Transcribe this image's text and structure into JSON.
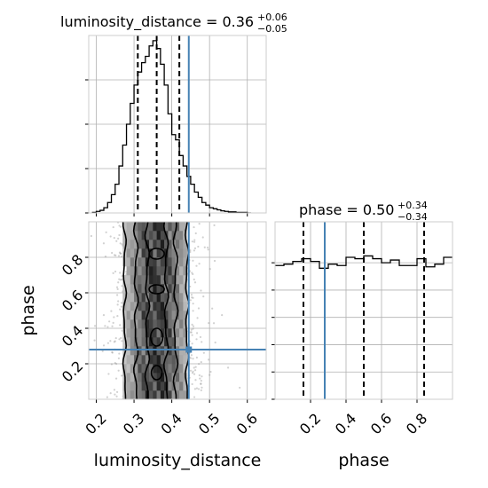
{
  "chart_data": [
    {
      "type": "histogram",
      "panel": "luminosity_distance marginal",
      "title": {
        "text": "luminosity_distance = 0.36",
        "sup": "+0.06",
        "sub": "−0.05"
      },
      "xlim": [
        0.18,
        0.65
      ],
      "bin_edges": [
        0.19,
        0.2,
        0.21,
        0.22,
        0.23,
        0.24,
        0.25,
        0.26,
        0.27,
        0.28,
        0.29,
        0.3,
        0.31,
        0.32,
        0.33,
        0.34,
        0.35,
        0.36,
        0.37,
        0.38,
        0.39,
        0.4,
        0.41,
        0.42,
        0.43,
        0.44,
        0.45,
        0.46,
        0.47,
        0.48,
        0.49,
        0.5,
        0.51,
        0.52,
        0.53,
        0.54,
        0.55,
        0.56,
        0.57,
        0.58,
        0.59,
        0.6,
        0.61
      ],
      "counts": [
        1,
        3,
        5,
        10,
        20,
        35,
        55,
        90,
        130,
        170,
        210,
        245,
        270,
        288,
        300,
        320,
        330,
        315,
        285,
        245,
        190,
        150,
        140,
        110,
        90,
        70,
        55,
        40,
        30,
        20,
        15,
        10,
        8,
        6,
        4,
        3,
        2,
        2,
        1,
        1,
        1,
        0
      ],
      "ylim": [
        0,
        340
      ],
      "quantiles": [
        0.31,
        0.36,
        0.42
      ],
      "truth": 0.445,
      "yticks": [
        0,
        85,
        170,
        255
      ],
      "grid": true
    },
    {
      "type": "histogram",
      "panel": "phase marginal",
      "title": {
        "text": "phase = 0.50",
        "sup": "+0.34",
        "sub": "−0.34"
      },
      "xlim": [
        0.0,
        1.0
      ],
      "bin_edges": [
        0.0,
        0.05,
        0.1,
        0.15,
        0.2,
        0.25,
        0.3,
        0.35,
        0.4,
        0.45,
        0.5,
        0.55,
        0.6,
        0.65,
        0.7,
        0.75,
        0.8,
        0.85,
        0.9,
        0.95,
        1.0
      ],
      "counts": [
        98,
        99,
        101,
        103,
        101,
        96,
        99,
        98,
        104,
        103,
        105,
        103,
        100,
        102,
        98,
        98,
        103,
        97,
        99,
        104
      ],
      "ylim": [
        0,
        130
      ],
      "quantiles": [
        0.16,
        0.5,
        0.84
      ],
      "truth": 0.28,
      "xticks": [
        0.2,
        0.4,
        0.6,
        0.8
      ],
      "xtick_labels": [
        "0.2",
        "0.4",
        "0.6",
        "0.8"
      ],
      "yticks": [
        0,
        20,
        40,
        60,
        80,
        100
      ],
      "grid": true,
      "xlabel": "phase"
    },
    {
      "type": "2d-density",
      "panel": "luminosity_distance vs phase",
      "xlim": [
        0.18,
        0.65
      ],
      "ylim": [
        0.0,
        1.0
      ],
      "xticks": [
        0.2,
        0.3,
        0.4,
        0.5,
        0.6
      ],
      "xtick_labels": [
        "0.2",
        "0.3",
        "0.4",
        "0.5",
        "0.6"
      ],
      "yticks": [
        0.2,
        0.4,
        0.6,
        0.8
      ],
      "ytick_labels": [
        "0.2",
        "0.4",
        "0.6",
        "0.8"
      ],
      "xlabel": "luminosity_distance",
      "ylabel": "phase",
      "truth": [
        0.445,
        0.28
      ],
      "x_center": 0.36,
      "x_sigma": 0.055,
      "grid": true
    }
  ],
  "colors": {
    "truth": "#4682b4",
    "line": "#000000",
    "grid": "#b0b0b0"
  }
}
